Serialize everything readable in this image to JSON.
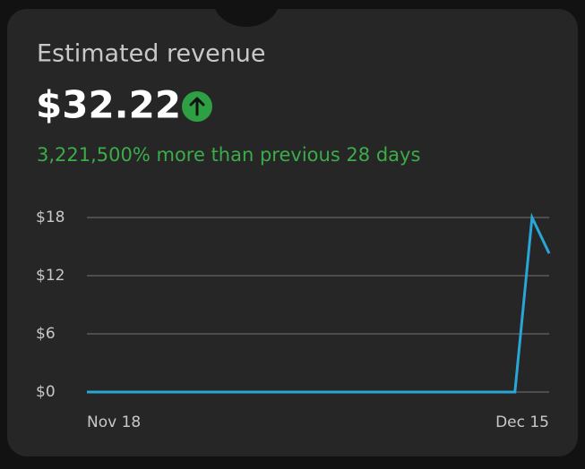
{
  "card": {
    "title": "Estimated revenue",
    "value": "$32.22",
    "change": "3,221,500% more than previous 28 days"
  },
  "chart_data": {
    "type": "line",
    "categories": [
      "Nov 18",
      null,
      null,
      null,
      null,
      null,
      null,
      null,
      null,
      null,
      null,
      null,
      null,
      null,
      null,
      null,
      null,
      null,
      null,
      null,
      null,
      null,
      null,
      null,
      null,
      null,
      null,
      "Dec 15"
    ],
    "series": [
      {
        "color": "#2aa6d6",
        "values": [
          0,
          0,
          0,
          0,
          0,
          0,
          0,
          0,
          0,
          0,
          0,
          0,
          0,
          0,
          0,
          0,
          0,
          0,
          0,
          0,
          0,
          0,
          0,
          0,
          0,
          0,
          18,
          14.3
        ]
      }
    ],
    "ylim": [
      0,
      18
    ],
    "yticks": [
      {
        "value": 0,
        "label": "$0"
      },
      {
        "value": 6,
        "label": "$6"
      },
      {
        "value": 12,
        "label": "$12"
      },
      {
        "value": 18,
        "label": "$18"
      }
    ],
    "grid": true
  }
}
